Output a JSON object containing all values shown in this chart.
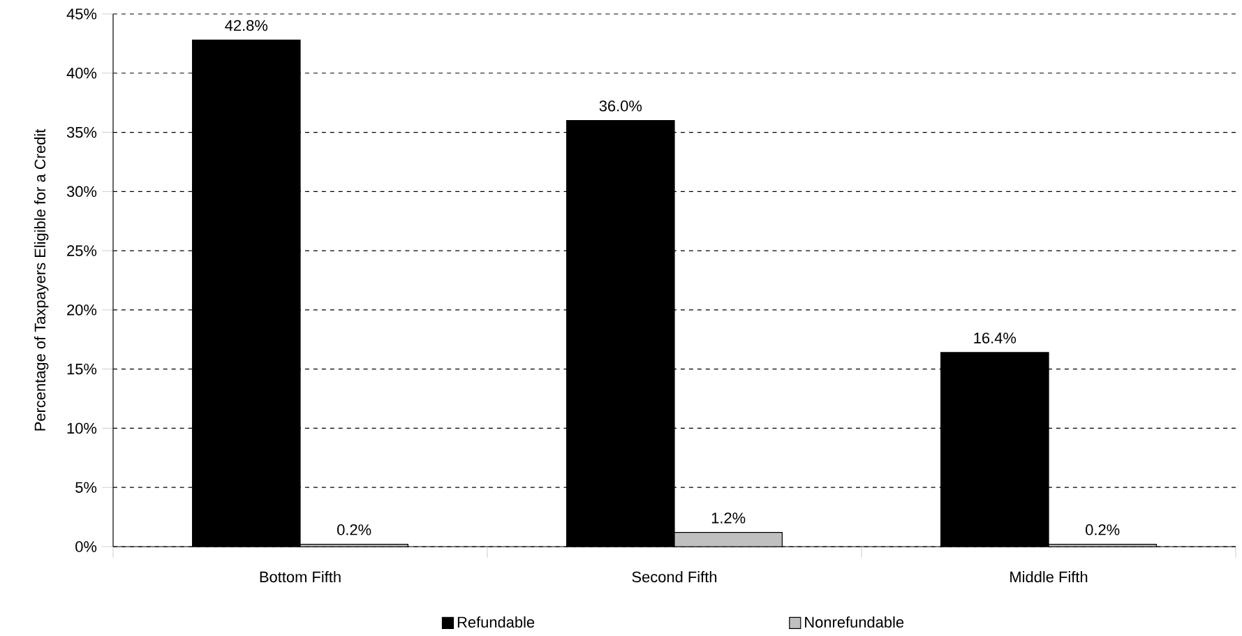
{
  "chart_data": {
    "type": "bar",
    "categories": [
      "Bottom Fifth",
      "Second Fifth",
      "Middle Fifth"
    ],
    "series": [
      {
        "name": "Refundable",
        "color": "#000000",
        "values": [
          42.8,
          36.0,
          16.4
        ],
        "value_labels": [
          "42.8%",
          "36.0%",
          "16.4%"
        ]
      },
      {
        "name": "Nonrefundable",
        "color": "#c0c0c0",
        "values": [
          0.2,
          1.2,
          0.2
        ],
        "value_labels": [
          "0.2%",
          "1.2%",
          "0.2%"
        ]
      }
    ],
    "ylabel": "Percentage of Taxpayers Eligible for a Credit",
    "ylim": [
      0,
      45
    ],
    "yticks": [
      {
        "value": 0,
        "label": "0%"
      },
      {
        "value": 5,
        "label": "5%"
      },
      {
        "value": 10,
        "label": "10%"
      },
      {
        "value": 15,
        "label": "15%"
      },
      {
        "value": 20,
        "label": "20%"
      },
      {
        "value": 25,
        "label": "25%"
      },
      {
        "value": 30,
        "label": "30%"
      },
      {
        "value": 35,
        "label": "35%"
      },
      {
        "value": 40,
        "label": "40%"
      },
      {
        "value": 45,
        "label": "45%"
      }
    ],
    "grid": "y",
    "legend": "bottom"
  }
}
